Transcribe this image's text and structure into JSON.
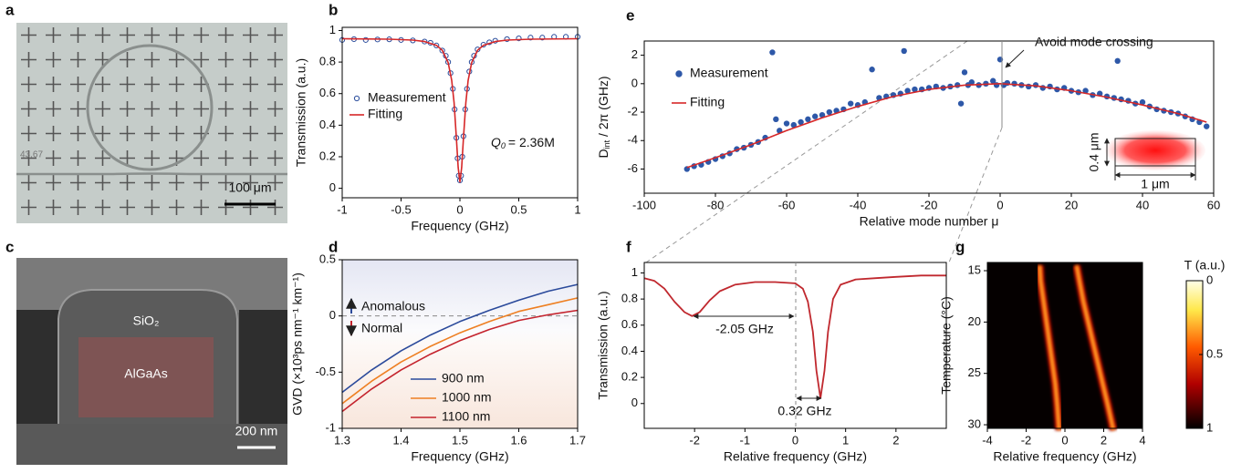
{
  "images": {
    "a": {
      "label": "a",
      "stage_readout": "43.67",
      "scale_bar": "100 μm"
    },
    "c": {
      "label": "c",
      "cladding": "SiO₂",
      "core": "AlGaAs",
      "scale_bar": "200 nm"
    }
  },
  "chart_data": [
    {
      "label": "b",
      "type": "line",
      "xlabel": "Frequency (GHz)",
      "ylabel": "Transmission  (a.u.)",
      "xlim": [
        -1,
        1
      ],
      "ylim": [
        -0.06,
        1.02
      ],
      "xticks": [
        -1,
        -0.5,
        0,
        0.5,
        1
      ],
      "yticks": [
        0,
        0.2,
        0.4,
        0.6,
        0.8,
        1
      ],
      "series": [
        {
          "name": "Measurement",
          "mode": "markers",
          "color": "#2a4d9c",
          "x": [
            -1,
            -0.9,
            -0.8,
            -0.7,
            -0.6,
            -0.5,
            -0.4,
            -0.3,
            -0.25,
            -0.2,
            -0.15,
            -0.12,
            -0.1,
            -0.08,
            -0.06,
            -0.045,
            -0.03,
            -0.02,
            -0.01,
            0,
            0.01,
            0.02,
            0.03,
            0.045,
            0.06,
            0.08,
            0.1,
            0.12,
            0.15,
            0.2,
            0.25,
            0.3,
            0.4,
            0.5,
            0.6,
            0.7,
            0.8,
            0.9,
            1
          ],
          "values": [
            0.94,
            0.945,
            0.94,
            0.943,
            0.944,
            0.94,
            0.937,
            0.93,
            0.922,
            0.905,
            0.873,
            0.84,
            0.8,
            0.73,
            0.63,
            0.5,
            0.32,
            0.19,
            0.08,
            0.05,
            0.08,
            0.2,
            0.33,
            0.5,
            0.63,
            0.74,
            0.8,
            0.84,
            0.88,
            0.91,
            0.925,
            0.935,
            0.945,
            0.95,
            0.955,
            0.955,
            0.96,
            0.96,
            0.96
          ]
        },
        {
          "name": "Fitting",
          "mode": "lines",
          "color": "#d62728",
          "x": [
            -1,
            -0.6,
            -0.4,
            -0.3,
            -0.2,
            -0.15,
            -0.1,
            -0.07,
            -0.05,
            -0.03,
            -0.015,
            0,
            0.015,
            0.03,
            0.05,
            0.07,
            0.1,
            0.15,
            0.2,
            0.3,
            0.4,
            0.6,
            1
          ],
          "values": [
            0.948,
            0.945,
            0.939,
            0.93,
            0.906,
            0.875,
            0.797,
            0.684,
            0.543,
            0.32,
            0.131,
            0.04,
            0.131,
            0.32,
            0.543,
            0.684,
            0.797,
            0.875,
            0.906,
            0.93,
            0.939,
            0.945,
            0.948
          ]
        }
      ],
      "annotation": {
        "symbol": "Q",
        "subscript": "0",
        "text": "= 2.36M"
      }
    },
    {
      "label": "d",
      "type": "line",
      "xlabel": "Frequency (GHz)",
      "ylabel": "GVD (×10³ps nm⁻¹ km⁻¹)",
      "xlim": [
        1.3,
        1.7
      ],
      "ylim": [
        -1,
        0.5
      ],
      "xticks": [
        1.3,
        1.4,
        1.5,
        1.6,
        1.7
      ],
      "yticks": [
        -1,
        -0.5,
        0,
        0.5
      ],
      "x": [
        1.3,
        1.35,
        1.4,
        1.45,
        1.5,
        1.55,
        1.6,
        1.65,
        1.7
      ],
      "series": [
        {
          "name": "900 nm",
          "mode": "lines",
          "color": "#2b4a9b",
          "values": [
            -0.68,
            -0.48,
            -0.31,
            -0.17,
            -0.05,
            0.05,
            0.14,
            0.22,
            0.28
          ]
        },
        {
          "name": "1000 nm",
          "mode": "lines",
          "color": "#ee7f22",
          "values": [
            -0.78,
            -0.58,
            -0.41,
            -0.27,
            -0.15,
            -0.05,
            0.04,
            0.1,
            0.16
          ]
        },
        {
          "name": "1100 nm",
          "mode": "lines",
          "color": "#c4232d",
          "values": [
            -0.85,
            -0.65,
            -0.48,
            -0.34,
            -0.22,
            -0.12,
            -0.04,
            0.01,
            0.05
          ]
        }
      ],
      "reference_line": 0,
      "annotations": {
        "above": "Anomalous",
        "below": "Normal"
      }
    },
    {
      "label": "e",
      "type": "scatter",
      "xlabel": "Relative mode number μ",
      "ylabel": {
        "main": "D",
        "sub": "int",
        "rest": " / 2π (GHz)"
      },
      "xlim": [
        -100,
        60
      ],
      "ylim": [
        -7.7,
        3
      ],
      "xticks": [
        -100,
        -80,
        -60,
        -40,
        -20,
        0,
        20,
        40,
        60
      ],
      "yticks": [
        -6,
        -4,
        -2,
        0,
        2
      ],
      "series": [
        {
          "name": "Measurement",
          "mode": "markers",
          "color": "#2e58a8",
          "x": [
            -88,
            -86,
            -84,
            -82,
            -80,
            -78,
            -76,
            -74,
            -72,
            -70,
            -68,
            -66,
            -64,
            -63,
            -62,
            -60,
            -58,
            -56,
            -54,
            -52,
            -50,
            -48,
            -46,
            -44,
            -42,
            -40,
            -38,
            -36,
            -34,
            -32,
            -30,
            -28,
            -27,
            -26,
            -24,
            -22,
            -20,
            -18,
            -16,
            -14,
            -12,
            -11,
            -10,
            -9,
            -8,
            -6,
            -4,
            -2,
            -1,
            0,
            1,
            2,
            4,
            6,
            8,
            10,
            12,
            14,
            16,
            18,
            20,
            22,
            24,
            26,
            28,
            30,
            32,
            33,
            34,
            36,
            38,
            40,
            42,
            44,
            46,
            48,
            50,
            52,
            54,
            56,
            58
          ],
          "values": [
            -6.0,
            -5.8,
            -5.7,
            -5.5,
            -5.3,
            -5.1,
            -4.9,
            -4.6,
            -4.5,
            -4.3,
            -4.1,
            -3.8,
            2.2,
            -2.5,
            -3.3,
            -2.8,
            -2.9,
            -2.7,
            -2.5,
            -2.3,
            -2.2,
            -2.0,
            -1.9,
            -1.8,
            -1.4,
            -1.5,
            -1.3,
            1.0,
            -1.0,
            -0.9,
            -0.8,
            -0.7,
            2.3,
            -0.5,
            -0.4,
            -0.4,
            -0.3,
            -0.2,
            -0.3,
            -0.2,
            -0.1,
            -1.4,
            0.8,
            -0.1,
            0.1,
            -0.1,
            0,
            0.2,
            -0.1,
            1.7,
            -0.1,
            0.05,
            0,
            -0.1,
            -0.2,
            -0.1,
            -0.3,
            -0.2,
            -0.4,
            -0.3,
            -0.5,
            -0.6,
            -0.5,
            -0.8,
            -0.7,
            -0.9,
            -1.0,
            1.6,
            -1.1,
            -1.2,
            -1.4,
            -1.3,
            -1.6,
            -1.8,
            -1.9,
            -2.0,
            -2.1,
            -2.3,
            -2.5,
            -2.7,
            -3.0
          ]
        },
        {
          "name": "Fitting",
          "mode": "lines",
          "color": "#d62728",
          "x": [
            -88,
            -80,
            -70,
            -60,
            -50,
            -40,
            -30,
            -20,
            -10,
            0,
            10,
            20,
            30,
            40,
            50,
            58
          ],
          "values": [
            -5.9,
            -5.2,
            -4.3,
            -3.3,
            -2.4,
            -1.6,
            -0.9,
            -0.4,
            -0.1,
            0,
            -0.15,
            -0.5,
            -0.95,
            -1.5,
            -2.1,
            -2.7
          ]
        }
      ],
      "annotation": "Avoid mode crossing",
      "inset": {
        "height": "0.4 μm",
        "width": "1 μm"
      }
    },
    {
      "label": "f",
      "type": "line",
      "xlabel": "Relative frequency (GHz)",
      "ylabel": "Transmission  (a.u.)",
      "xlim": [
        -3,
        3
      ],
      "ylim": [
        -0.19,
        1.08
      ],
      "xticks": [
        -2,
        -1,
        0,
        1,
        2
      ],
      "yticks": [
        0,
        0.2,
        0.4,
        0.6,
        0.8,
        1
      ],
      "series": [
        {
          "mode": "lines",
          "color": "#c0282e",
          "x": [
            -3,
            -2.8,
            -2.6,
            -2.4,
            -2.2,
            -2.05,
            -1.9,
            -1.7,
            -1.5,
            -1.2,
            -0.8,
            -0.4,
            0,
            0.15,
            0.25,
            0.35,
            0.42,
            0.5,
            0.58,
            0.65,
            0.75,
            0.9,
            1.2,
            1.6,
            2,
            2.5,
            3
          ],
          "values": [
            0.96,
            0.94,
            0.88,
            0.78,
            0.7,
            0.67,
            0.7,
            0.79,
            0.86,
            0.91,
            0.93,
            0.93,
            0.92,
            0.88,
            0.78,
            0.55,
            0.25,
            0.04,
            0.25,
            0.55,
            0.8,
            0.91,
            0.95,
            0.96,
            0.97,
            0.98,
            0.98
          ]
        }
      ],
      "annotations": [
        "-2.05 GHz",
        "0.32 GHz"
      ]
    },
    {
      "label": "g",
      "type": "heatmap",
      "xlabel": "Relative frequency (GHz)",
      "ylabel": "Temperature  (°C)",
      "xlim": [
        -4,
        4
      ],
      "ylim": [
        14.2,
        30.35
      ],
      "xticks": [
        -4,
        -2,
        0,
        2,
        4
      ],
      "yticks": [
        15,
        20,
        25,
        30
      ],
      "y_inverted": true,
      "y": [
        14.5,
        16,
        18,
        20,
        22,
        24,
        26,
        28,
        30.5
      ],
      "traces": [
        {
          "x": [
            -1.3,
            -1.25,
            -1.1,
            -0.95,
            -0.8,
            -0.65,
            -0.5,
            -0.4,
            -0.3
          ]
        },
        {
          "x": [
            0.6,
            0.75,
            0.95,
            1.2,
            1.45,
            1.7,
            1.95,
            2.2,
            2.5
          ]
        }
      ],
      "colorbar": {
        "title": "T (a.u.)",
        "lim": [
          0,
          1
        ],
        "ticks": [
          0,
          0.5,
          1
        ]
      }
    }
  ]
}
